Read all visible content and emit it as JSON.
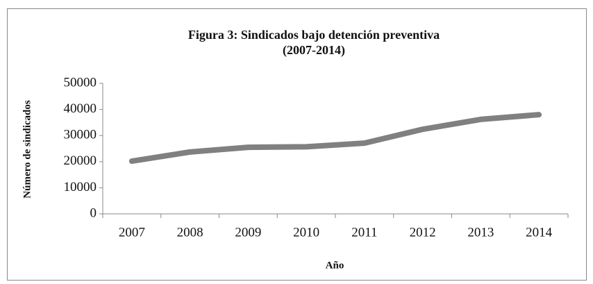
{
  "chart_data": {
    "type": "line",
    "title": "Figura 3: Sindicados bajo detención preventiva",
    "subtitle": "(2007-2014)",
    "xlabel": "Año",
    "ylabel": "Número de sindicados",
    "categories": [
      "2007",
      "2008",
      "2009",
      "2010",
      "2011",
      "2012",
      "2013",
      "2014"
    ],
    "series": [
      {
        "name": "Sindicados",
        "color": "#808080",
        "values": [
          20200,
          23700,
          25500,
          25700,
          27100,
          32400,
          36200,
          38000
        ]
      }
    ],
    "ylim": [
      0,
      50000
    ],
    "yticks": [
      0,
      10000,
      20000,
      30000,
      40000,
      50000
    ],
    "grid": false
  }
}
